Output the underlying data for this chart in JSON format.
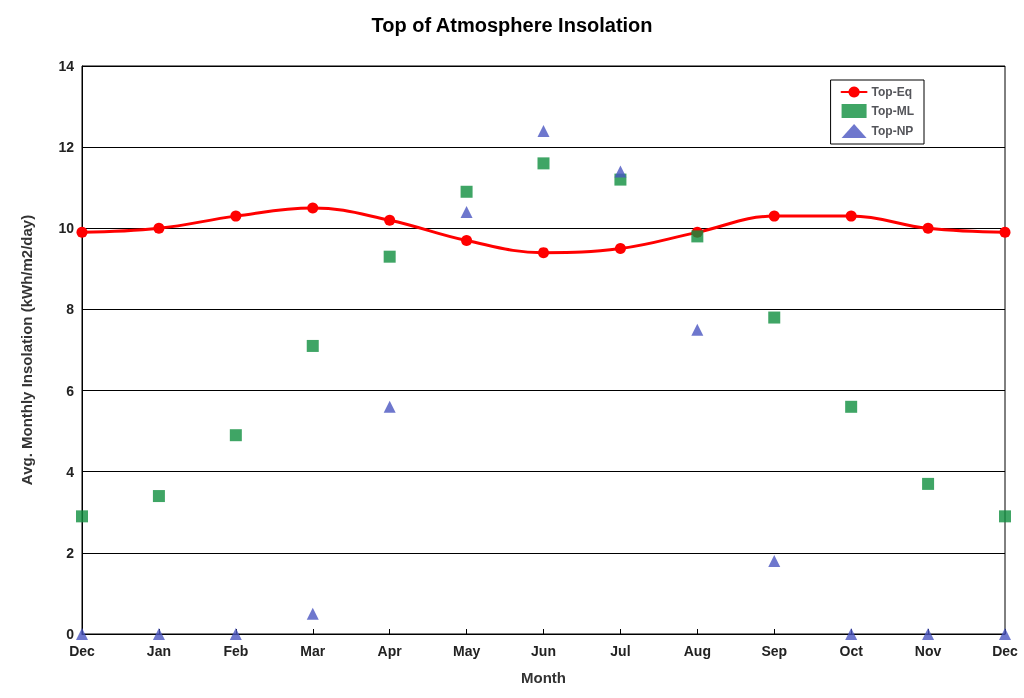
{
  "chart_data": {
    "type": "line",
    "title": "Top of Atmosphere Insolation",
    "xlabel": "Month",
    "ylabel": "Avg. Monthly Insolation (kWh/m2/day)",
    "categories": [
      "Dec",
      "Jan",
      "Feb",
      "Mar",
      "Apr",
      "May",
      "Jun",
      "Jul",
      "Aug",
      "Sep",
      "Oct",
      "Nov",
      "Dec"
    ],
    "series": [
      {
        "name": "Top-Eq",
        "color": "#ff0000",
        "marker": "circle",
        "line_style": "solid",
        "values": [
          9.9,
          10.0,
          10.3,
          10.5,
          10.2,
          9.7,
          9.4,
          9.5,
          9.9,
          10.3,
          10.3,
          10.0,
          9.9
        ]
      },
      {
        "name": "Top-ML",
        "type": "scatter",
        "color": "#0f8f3f",
        "marker": "square",
        "values": [
          2.9,
          3.4,
          4.9,
          7.1,
          9.3,
          10.9,
          11.6,
          11.2,
          9.8,
          7.8,
          5.6,
          3.7,
          2.9
        ]
      },
      {
        "name": "Top-NP",
        "type": "scatter",
        "color": "#4a55c0",
        "marker": "triangle",
        "values": [
          0,
          0,
          0,
          0.5,
          5.6,
          10.4,
          12.4,
          11.4,
          7.5,
          1.8,
          0,
          0,
          0
        ]
      }
    ],
    "ylim": [
      0,
      14
    ],
    "yticks": [
      0,
      2,
      4,
      6,
      8,
      10,
      12,
      14
    ],
    "grid": "y",
    "legend": "top right"
  }
}
